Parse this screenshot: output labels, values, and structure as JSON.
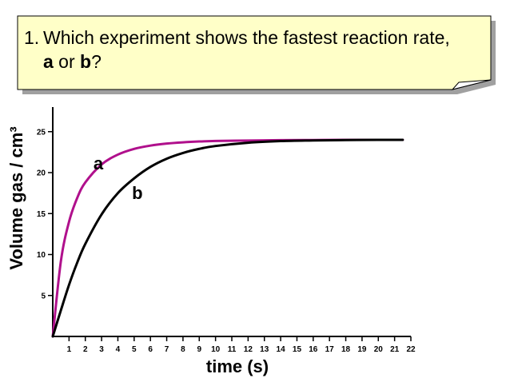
{
  "question": {
    "number": "1.",
    "line1": "Which experiment shows the fastest reaction rate,",
    "option_a": "a",
    "or_word": " or ",
    "option_b": "b",
    "end": "?"
  },
  "colors": {
    "box_fill": "#ffffc8",
    "box_shadow": "#a0a0a0",
    "series_a": "#b0108c",
    "series_b": "#000000",
    "axis": "#000000"
  },
  "chart_data": {
    "type": "line",
    "title": "",
    "xlabel": "time (s)",
    "ylabel": "Volume gas / cm³",
    "xlim": [
      0,
      22
    ],
    "ylim": [
      0,
      28
    ],
    "x_ticks": [
      "1",
      "2",
      "3",
      "4",
      "5",
      "6",
      "7",
      "8",
      "9",
      "10",
      "11",
      "12",
      "13",
      "14",
      "15",
      "16",
      "17",
      "18",
      "19",
      "20",
      "21",
      "22"
    ],
    "y_ticks": [
      "5",
      "10",
      "15",
      "20",
      "25"
    ],
    "grid": false,
    "series": [
      {
        "name": "a",
        "x": [
          0,
          0.5,
          1,
          1.5,
          2,
          3,
          4,
          5,
          6,
          7,
          8,
          9,
          10,
          12,
          14,
          16,
          18,
          20,
          21.5
        ],
        "y": [
          0,
          9.2,
          14.0,
          16.9,
          18.8,
          21.0,
          22.2,
          22.9,
          23.3,
          23.55,
          23.7,
          23.8,
          23.86,
          23.92,
          23.96,
          23.98,
          24.0,
          24.0,
          24.0
        ]
      },
      {
        "name": "b",
        "x": [
          0,
          0.5,
          1,
          1.5,
          2,
          3,
          4,
          5,
          6,
          7,
          8,
          9,
          10,
          12,
          14,
          16,
          18,
          20,
          21.5
        ],
        "y": [
          0,
          3.2,
          6.3,
          9.0,
          11.3,
          14.9,
          17.5,
          19.3,
          20.7,
          21.7,
          22.4,
          22.9,
          23.25,
          23.65,
          23.85,
          23.93,
          23.97,
          24.0,
          24.0
        ]
      }
    ]
  }
}
